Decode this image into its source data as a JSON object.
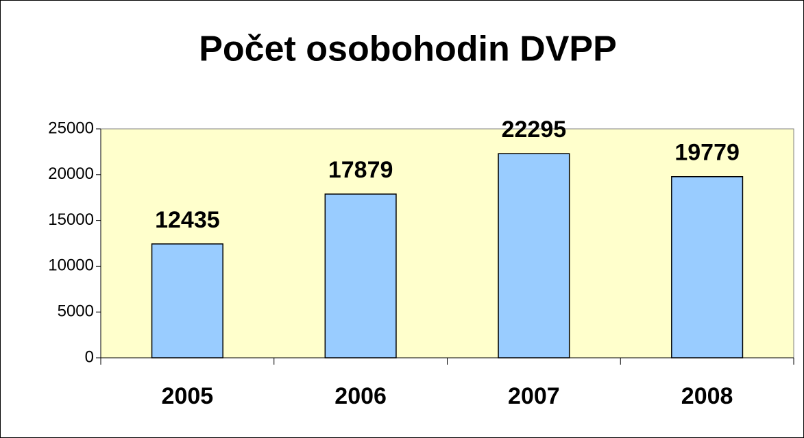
{
  "chart_data": {
    "type": "bar",
    "title": "Počet osobohodin DVPP",
    "categories": [
      "2005",
      "2006",
      "2007",
      "2008"
    ],
    "values": [
      12435,
      17879,
      22295,
      19779
    ],
    "color": "#99ccff",
    "plot_background": "#ffffcc",
    "ylim": [
      0,
      25000
    ],
    "yticks": [
      0,
      5000,
      10000,
      15000,
      20000,
      25000
    ]
  }
}
